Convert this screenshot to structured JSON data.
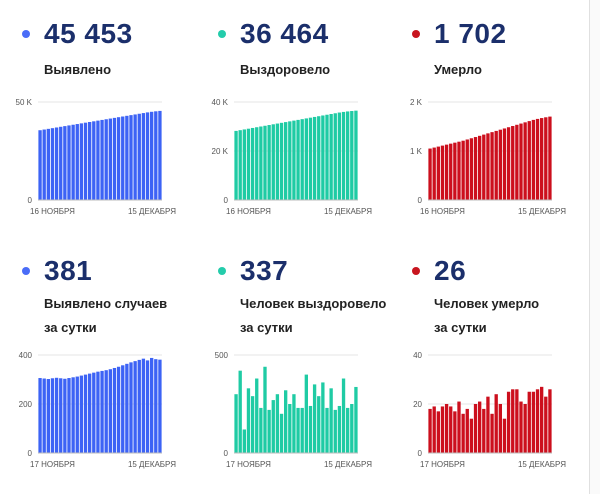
{
  "panels": [
    {
      "value": "45 453",
      "label_lines": [
        "Выявлено"
      ],
      "color": "#4a6cf7"
    },
    {
      "value": "36 464",
      "label_lines": [
        "Выздоровело"
      ],
      "color": "#24ccab"
    },
    {
      "value": "1 702",
      "label_lines": [
        "Умерло"
      ],
      "color": "#c8151f"
    },
    {
      "value": "381",
      "label_lines": [
        "Выявлено случаев",
        "за сутки"
      ],
      "color": "#4a6cf7"
    },
    {
      "value": "337",
      "label_lines": [
        "Человек выздоровело",
        "за сутки"
      ],
      "color": "#24ccab"
    },
    {
      "value": "26",
      "label_lines": [
        "Человек умерло",
        "за сутки"
      ],
      "color": "#c8151f"
    }
  ],
  "chart_data": [
    {
      "type": "bar",
      "series_name": "Выявлено",
      "color": "#3d63f5",
      "x_start": "16 НОЯБРЯ",
      "x_end": "15 ДЕКАБРЯ",
      "ylim": [
        0,
        50000
      ],
      "yticks": [
        {
          "v": 0,
          "label": "0"
        },
        {
          "v": 50000,
          "label": "50 K"
        }
      ],
      "values": [
        35600,
        35950,
        36300,
        36650,
        37000,
        37350,
        37700,
        38050,
        38400,
        38750,
        39100,
        39450,
        39800,
        40150,
        40500,
        40850,
        41200,
        41550,
        41900,
        42250,
        42600,
        42950,
        43300,
        43650,
        44000,
        44350,
        44700,
        45000,
        45250,
        45453
      ]
    },
    {
      "type": "bar",
      "series_name": "Выздоровело",
      "color": "#1fcba4",
      "x_start": "16 НОЯБРЯ",
      "x_end": "15 ДЕКАБРЯ",
      "ylim": [
        0,
        40000
      ],
      "yticks": [
        {
          "v": 0,
          "label": "0"
        },
        {
          "v": 20000,
          "label": "20 K"
        },
        {
          "v": 40000,
          "label": "40 K"
        }
      ],
      "values": [
        28200,
        28500,
        28800,
        29100,
        29400,
        29700,
        30000,
        30300,
        30600,
        30900,
        31200,
        31500,
        31800,
        32100,
        32400,
        32700,
        33000,
        33300,
        33600,
        33900,
        34200,
        34500,
        34800,
        35100,
        35400,
        35700,
        35950,
        36150,
        36320,
        36464
      ]
    },
    {
      "type": "bar",
      "series_name": "Умерло",
      "color": "#cc0f1d",
      "x_start": "16 НОЯБРЯ",
      "x_end": "15 ДЕКАБРЯ",
      "ylim": [
        0,
        2000
      ],
      "yticks": [
        {
          "v": 0,
          "label": "0"
        },
        {
          "v": 1000,
          "label": "1 K"
        },
        {
          "v": 2000,
          "label": "2 K"
        }
      ],
      "values": [
        1050,
        1070,
        1090,
        1110,
        1130,
        1150,
        1170,
        1190,
        1210,
        1235,
        1260,
        1285,
        1310,
        1335,
        1360,
        1385,
        1410,
        1435,
        1460,
        1485,
        1510,
        1535,
        1560,
        1585,
        1610,
        1635,
        1655,
        1672,
        1688,
        1702
      ]
    },
    {
      "type": "bar",
      "series_name": "Выявлено случаев за сутки",
      "color": "#3d63f5",
      "x_start": "17 НОЯБРЯ",
      "x_end": "15 ДЕКАБРЯ",
      "ylim": [
        0,
        400
      ],
      "yticks": [
        {
          "v": 0,
          "label": "0"
        },
        {
          "v": 200,
          "label": "200"
        },
        {
          "v": 400,
          "label": "400"
        }
      ],
      "values": [
        306,
        304,
        302,
        305,
        307,
        305,
        303,
        306,
        309,
        312,
        316,
        320,
        324,
        328,
        332,
        335,
        338,
        342,
        347,
        352,
        358,
        364,
        370,
        375,
        380,
        385,
        378,
        388,
        383,
        381
      ]
    },
    {
      "type": "bar",
      "series_name": "Человек выздоровело за сутки",
      "color": "#1fcba4",
      "x_start": "17 НОЯБРЯ",
      "x_end": "15 ДЕКАБРЯ",
      "ylim": [
        0,
        500
      ],
      "yticks": [
        {
          "v": 0,
          "label": "0"
        },
        {
          "v": 500,
          "label": "500"
        }
      ],
      "values": [
        300,
        420,
        120,
        330,
        290,
        380,
        230,
        440,
        220,
        270,
        300,
        200,
        320,
        250,
        300,
        230,
        230,
        400,
        240,
        350,
        290,
        360,
        230,
        330,
        220,
        240,
        380,
        230,
        250,
        337
      ]
    },
    {
      "type": "bar",
      "series_name": "Человек умерло за сутки",
      "color": "#cc0f1d",
      "x_start": "17 НОЯБРЯ",
      "x_end": "15 ДЕКАБРЯ",
      "ylim": [
        0,
        40
      ],
      "yticks": [
        {
          "v": 0,
          "label": "0"
        },
        {
          "v": 20,
          "label": "20"
        },
        {
          "v": 40,
          "label": "40"
        }
      ],
      "values": [
        18,
        19,
        17,
        19,
        20,
        19,
        17,
        21,
        16,
        18,
        14,
        20,
        21,
        18,
        23,
        16,
        24,
        20,
        14,
        25,
        26,
        26,
        21,
        20,
        25,
        25,
        26,
        27,
        23,
        26
      ]
    }
  ]
}
